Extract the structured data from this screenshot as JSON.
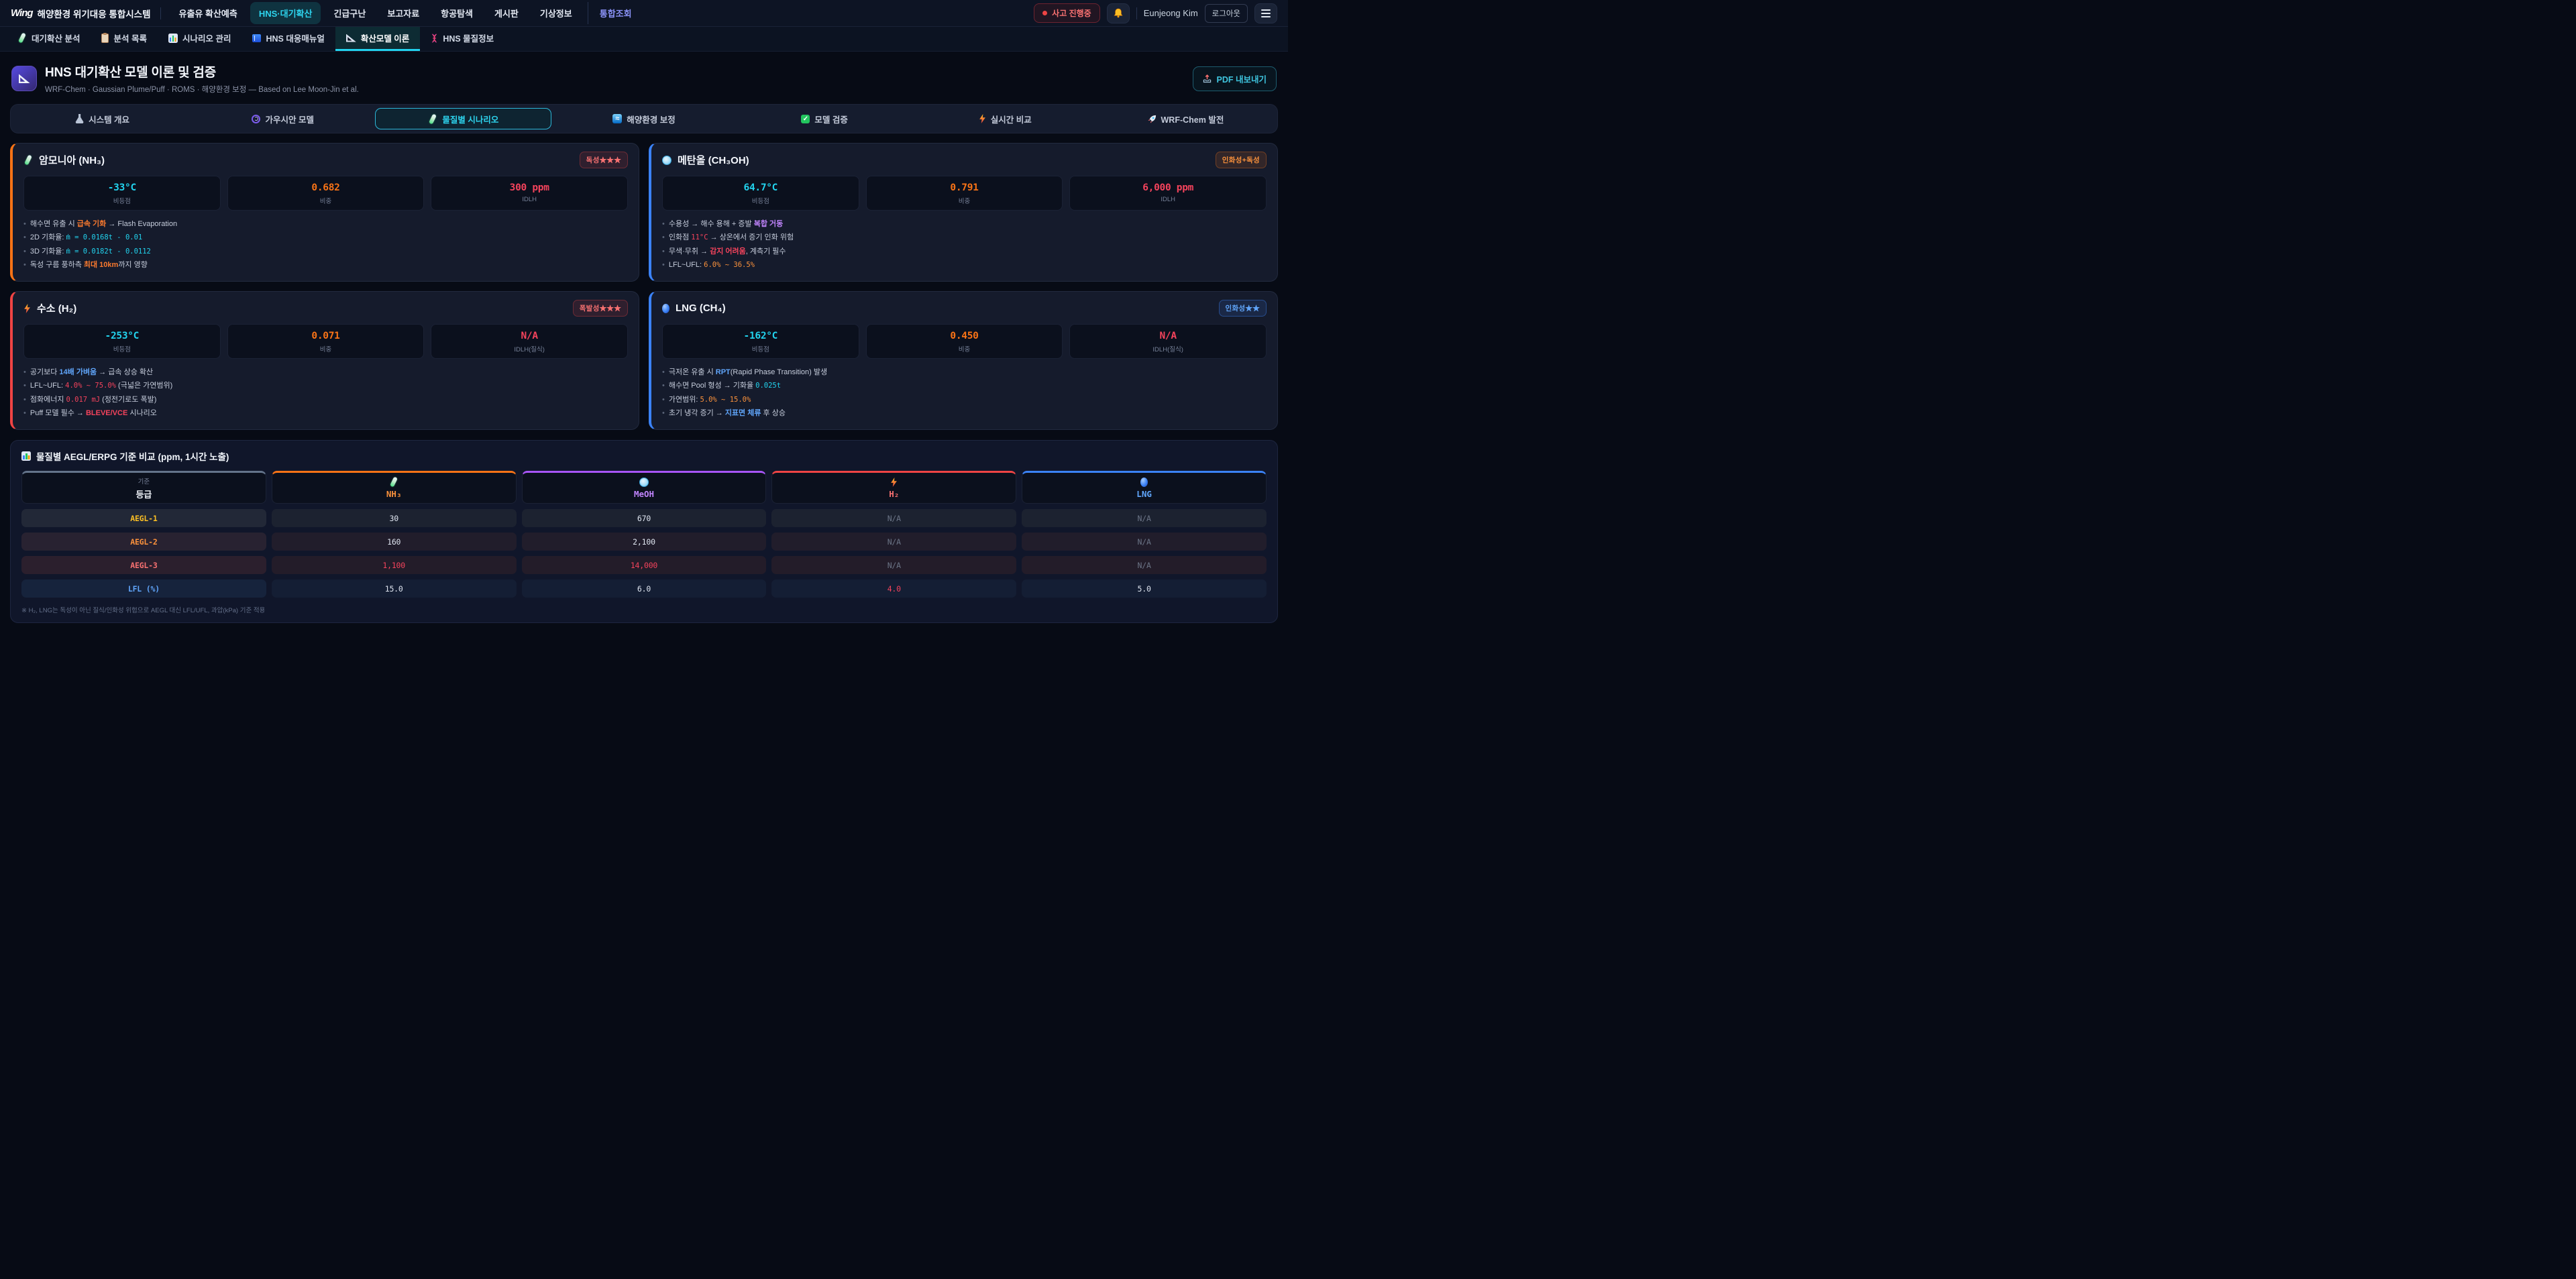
{
  "topbar": {
    "logo_mark": "Wing",
    "logo_text": "해양환경 위기대응 통합시스템",
    "nav": [
      {
        "label": "유출유 확산예측",
        "active": false,
        "accent": false
      },
      {
        "label": "HNS·대기확산",
        "active": true,
        "accent": false
      },
      {
        "label": "긴급구난",
        "active": false,
        "accent": false
      },
      {
        "label": "보고자료",
        "active": false,
        "accent": false
      },
      {
        "label": "항공탐색",
        "active": false,
        "accent": false
      },
      {
        "label": "게시판",
        "active": false,
        "accent": false
      },
      {
        "label": "기상정보",
        "active": false,
        "accent": false
      },
      {
        "label": "통합조회",
        "active": false,
        "accent": true
      }
    ],
    "incident_badge": "사고 진행중",
    "user_name": "Eunjeong Kim",
    "logout_label": "로그아웃"
  },
  "subtabs": [
    {
      "icon": "test-tube",
      "label": "대기확산 분석",
      "active": false
    },
    {
      "icon": "clipboard",
      "label": "분석 목록",
      "active": false
    },
    {
      "icon": "bar-chart",
      "label": "시나리오 관리",
      "active": false
    },
    {
      "icon": "book",
      "label": "HNS 대응매뉴얼",
      "active": false
    },
    {
      "icon": "ruler",
      "label": "확산모델 이론",
      "active": true
    },
    {
      "icon": "dna",
      "label": "HNS 물질정보",
      "active": false
    }
  ],
  "header": {
    "title": "HNS 대기확산 모델 이론 및 검증",
    "subtitle": "WRF-Chem · Gaussian Plume/Puff · ROMS · 해양환경 보정 — Based on Lee Moon-Jin et al.",
    "export_label": "PDF 내보내기"
  },
  "section_tabs": [
    {
      "icon": "flask",
      "label": "시스템 개요",
      "active": false
    },
    {
      "icon": "swirl",
      "label": "가우시안 모델",
      "active": false
    },
    {
      "icon": "test-tube",
      "label": "물질별 시나리오",
      "active": true
    },
    {
      "icon": "wave",
      "label": "해양환경 보정",
      "active": false
    },
    {
      "icon": "check",
      "label": "모델 검증",
      "active": false
    },
    {
      "icon": "bolt",
      "label": "실시간 비교",
      "active": false
    },
    {
      "icon": "rocket",
      "label": "WRF-Chem 발전",
      "active": false
    }
  ],
  "cards": [
    {
      "id": "ammonia",
      "icon": "test-tube",
      "accent": "#f97316",
      "name": "암모니아 (NH₃)",
      "badge": {
        "text": "독성★★★",
        "color": "red"
      },
      "stats": [
        {
          "value": "-33°C",
          "color": "cyan",
          "label": "비등점"
        },
        {
          "value": "0.682",
          "color": "orange",
          "label": "비중"
        },
        {
          "value": "300 ppm",
          "color": "red",
          "label": "IDLH"
        }
      ],
      "bullets": [
        [
          {
            "t": "해수면 유출 시 "
          },
          {
            "t": "급속 기화",
            "s": "hl-orange"
          },
          {
            "t": " → Flash Evaporation"
          }
        ],
        [
          {
            "t": "2D 기화율: "
          },
          {
            "t": "ṁ = 0.0168t - 0.01",
            "s": "mono-cyan"
          }
        ],
        [
          {
            "t": "3D 기화율: "
          },
          {
            "t": "ṁ = 0.0182t - 0.0112",
            "s": "mono-cyan"
          }
        ],
        [
          {
            "t": "독성 구름 풍하측 "
          },
          {
            "t": "최대 10km",
            "s": "hl-orange"
          },
          {
            "t": "까지 영향"
          }
        ]
      ]
    },
    {
      "id": "methanol",
      "icon": "dish",
      "accent": "#3b82f6",
      "name": "메탄올 (CH₃OH)",
      "badge": {
        "text": "인화성+독성",
        "color": "orange"
      },
      "stats": [
        {
          "value": "64.7°C",
          "color": "cyan",
          "label": "비등점"
        },
        {
          "value": "0.791",
          "color": "orange",
          "label": "비중"
        },
        {
          "value": "6,000 ppm",
          "color": "red",
          "label": "IDLH"
        }
      ],
      "bullets": [
        [
          {
            "t": "수용성 → 해수 용해 + 증발 "
          },
          {
            "t": "복합 거동",
            "s": "hl-purple"
          }
        ],
        [
          {
            "t": "인화점 "
          },
          {
            "t": "11°C",
            "s": "mono-red"
          },
          {
            "t": " → 상온에서 증기 인화 위험"
          }
        ],
        [
          {
            "t": "무색·무취 → "
          },
          {
            "t": "감지 어려움",
            "s": "hl-red"
          },
          {
            "t": ", 계측기 필수"
          }
        ],
        [
          {
            "t": "LFL~UFL: "
          },
          {
            "t": "6.0% ~ 36.5%",
            "s": "mono-orange"
          }
        ]
      ]
    },
    {
      "id": "hydrogen",
      "icon": "bolt",
      "accent": "#ef4444",
      "name": "수소 (H₂)",
      "badge": {
        "text": "폭발성★★★",
        "color": "red"
      },
      "stats": [
        {
          "value": "-253°C",
          "color": "cyan",
          "label": "비등점"
        },
        {
          "value": "0.071",
          "color": "orange",
          "label": "비중"
        },
        {
          "value": "N/A",
          "color": "red",
          "label": "IDLH(질식)"
        }
      ],
      "bullets": [
        [
          {
            "t": "공기보다 "
          },
          {
            "t": "14배 가벼움",
            "s": "hl-blue"
          },
          {
            "t": " → 급속 상승 확산"
          }
        ],
        [
          {
            "t": "LFL~UFL: "
          },
          {
            "t": "4.0% ~ 75.0%",
            "s": "mono-red"
          },
          {
            "t": " (극넓은 가연범위)"
          }
        ],
        [
          {
            "t": "점화에너지 "
          },
          {
            "t": "0.017 mJ",
            "s": "mono-red"
          },
          {
            "t": " (정전기로도 폭발)"
          }
        ],
        [
          {
            "t": "Puff 모델 필수 → "
          },
          {
            "t": "BLEVE/VCE",
            "s": "hl-red"
          },
          {
            "t": " 시나리오"
          }
        ]
      ]
    },
    {
      "id": "lng",
      "icon": "sphere",
      "accent": "#3b82f6",
      "name": "LNG (CH₄)",
      "badge": {
        "text": "인화성★★",
        "color": "blue"
      },
      "stats": [
        {
          "value": "-162°C",
          "color": "cyan",
          "label": "비등점"
        },
        {
          "value": "0.450",
          "color": "orange",
          "label": "비중"
        },
        {
          "value": "N/A",
          "color": "red",
          "label": "IDLH(질식)"
        }
      ],
      "bullets": [
        [
          {
            "t": "극저온 유출 시 "
          },
          {
            "t": "RPT",
            "s": "hl-blue"
          },
          {
            "t": "(Rapid Phase Transition) 발생"
          }
        ],
        [
          {
            "t": "해수면 Pool 형성 → 기화율 "
          },
          {
            "t": "0.025t",
            "s": "mono-cyan"
          }
        ],
        [
          {
            "t": "가연범위: "
          },
          {
            "t": "5.0% ~ 15.0%",
            "s": "mono-orange"
          }
        ],
        [
          {
            "t": "초기 냉각 증기 → "
          },
          {
            "t": "지표면 체류",
            "s": "hl-blue"
          },
          {
            "t": " 후 상승"
          }
        ]
      ]
    }
  ],
  "table": {
    "title": "물질별 AEGL/ERPG 기준 비교 (ppm, 1시간 노출)",
    "corner": {
      "small": "기준",
      "big": "등급"
    },
    "columns": [
      {
        "icon": "test-tube",
        "label": "NH₃",
        "color": "#fb923c",
        "accent": "#f97316"
      },
      {
        "icon": "dish",
        "label": "MeOH",
        "color": "#c084fc",
        "accent": "#a855f7"
      },
      {
        "icon": "bolt",
        "label": "H₂",
        "color": "#f87171",
        "accent": "#ef4444"
      },
      {
        "icon": "sphere",
        "label": "LNG",
        "color": "#60a5fa",
        "accent": "#3b82f6"
      }
    ],
    "rows": [
      {
        "label": "AEGL-1",
        "label_color": "#fbbf24",
        "tint": "gray",
        "values": [
          {
            "v": "30"
          },
          {
            "v": "670"
          },
          {
            "v": "N/A",
            "muted": true
          },
          {
            "v": "N/A",
            "muted": true
          }
        ]
      },
      {
        "label": "AEGL-2",
        "label_color": "#fb923c",
        "tint": "orange",
        "values": [
          {
            "v": "160"
          },
          {
            "v": "2,100"
          },
          {
            "v": "N/A",
            "muted": true
          },
          {
            "v": "N/A",
            "muted": true
          }
        ]
      },
      {
        "label": "AEGL-3",
        "label_color": "#f87171",
        "tint": "red",
        "values": [
          {
            "v": "1,100",
            "danger": true
          },
          {
            "v": "14,000",
            "danger": true
          },
          {
            "v": "N/A",
            "muted": true
          },
          {
            "v": "N/A",
            "muted": true
          }
        ]
      },
      {
        "label": "LFL (%)",
        "label_color": "#60a5fa",
        "tint": "blue",
        "values": [
          {
            "v": "15.0"
          },
          {
            "v": "6.0"
          },
          {
            "v": "4.0",
            "danger": true
          },
          {
            "v": "5.0"
          }
        ]
      }
    ],
    "footnote": "※ H₂, LNG는 독성이 아닌 질식/인화성 위험으로 AEGL 대신 LFL/UFL, 과압(kPa) 기준 적용"
  }
}
